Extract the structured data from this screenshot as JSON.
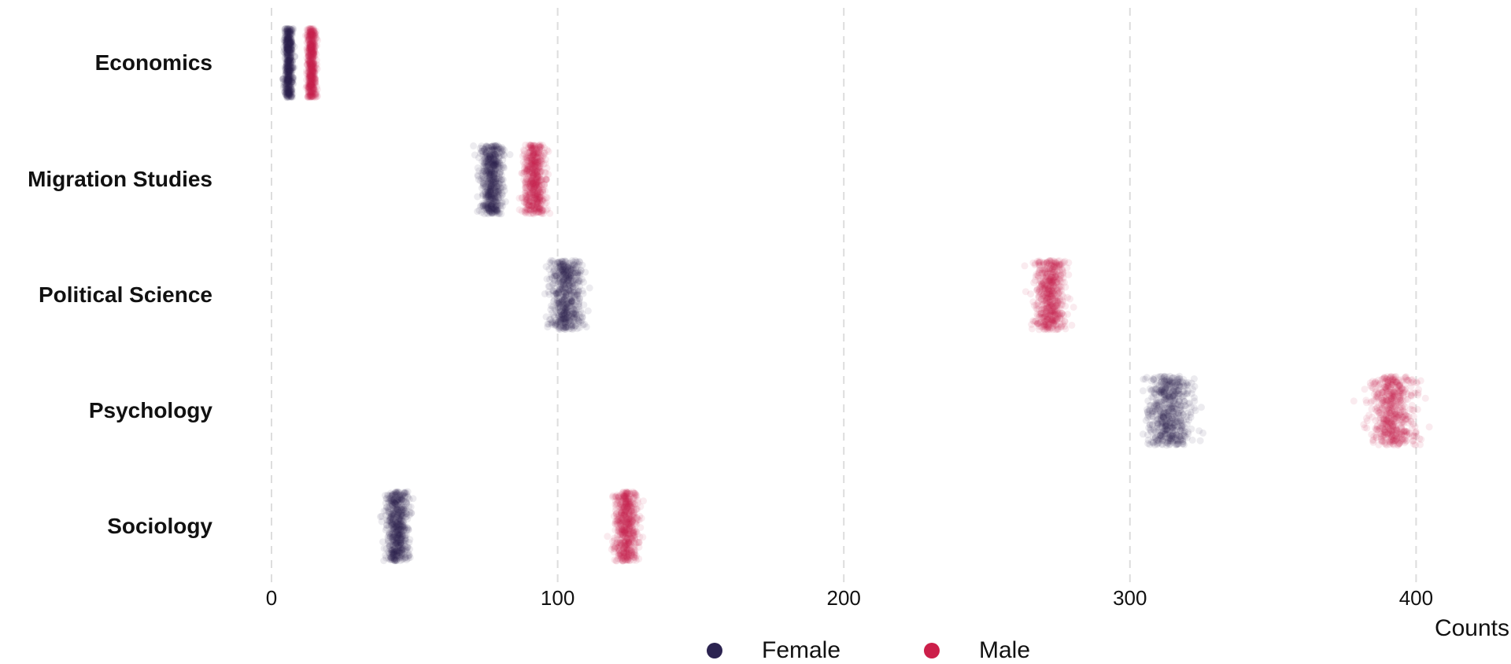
{
  "chart_data": {
    "type": "scatter",
    "subtype": "jitter strip plot",
    "title": "",
    "xlabel": "Counts",
    "ylabel": "",
    "xlim": [
      0,
      420
    ],
    "x_ticks": [
      0,
      100,
      200,
      300,
      400
    ],
    "x_tick_labels": [
      "0",
      "100",
      "200",
      "300",
      "400"
    ],
    "grid": "vertical dashed at x ticks",
    "legend_position": "bottom",
    "categories": [
      "Economics",
      "Migration Studies",
      "Political Science",
      "Psychology",
      "Sociology"
    ],
    "series": [
      {
        "name": "Female",
        "color": "#2b2350",
        "centers": [
          6,
          77,
          103,
          314,
          44
        ],
        "spread": [
          2,
          5,
          7,
          10,
          5
        ]
      },
      {
        "name": "Male",
        "color": "#cc1f4a",
        "centers": [
          14,
          92,
          272,
          392,
          124
        ],
        "spread": [
          2,
          5,
          7,
          10,
          5
        ]
      }
    ]
  },
  "legend": {
    "items": [
      {
        "label": "Female",
        "color": "#2b2350"
      },
      {
        "label": "Male",
        "color": "#cc1f4a"
      }
    ]
  },
  "axis": {
    "x_title": "Counts"
  }
}
